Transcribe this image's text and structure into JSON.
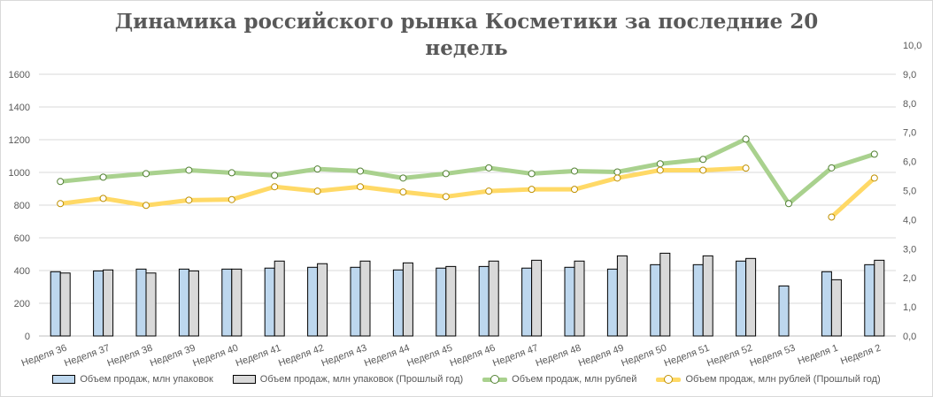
{
  "chart_data": {
    "type": "bar+line",
    "title": "Динамика российского рынка Косметики за последние 20 недель",
    "categories": [
      "Неделя 36",
      "Неделя 37",
      "Неделя 38",
      "Неделя 39",
      "Неделя 40",
      "Неделя 41",
      "Неделя 42",
      "Неделя 43",
      "Неделя 44",
      "Неделя 45",
      "Неделя 46",
      "Неделя 47",
      "Неделя 48",
      "Неделя 49",
      "Неделя 50",
      "Неделя 51",
      "Неделя 52",
      "Неделя 53",
      "Неделя 1",
      "Неделя 2"
    ],
    "y_left": {
      "min": 0,
      "max": 1600,
      "step": 200,
      "ticks": [
        "0",
        "200",
        "400",
        "600",
        "800",
        "1000",
        "1200",
        "1400",
        "1600"
      ]
    },
    "y_right": {
      "min": 0,
      "max": 10,
      "step": 1,
      "ticks": [
        "0,0",
        "1,0",
        "2,0",
        "3,0",
        "4,0",
        "5,0",
        "6,0",
        "7,0",
        "8,0",
        "9,0",
        "10,0"
      ]
    },
    "grid": true,
    "legend_position": "bottom",
    "series": [
      {
        "name": "Объем продаж, млн упаковок",
        "type": "bar",
        "axis": "left",
        "color": "#bdd7ee",
        "values": [
          393,
          398,
          409,
          409,
          409,
          415,
          420,
          420,
          404,
          415,
          425,
          415,
          420,
          409,
          436,
          436,
          458,
          306,
          393,
          436
        ]
      },
      {
        "name": "Объем продаж, млн упаковок (Прошлый год)",
        "type": "bar",
        "axis": "left",
        "color": "#d9d9d9",
        "values": [
          385,
          404,
          385,
          398,
          409,
          458,
          442,
          458,
          447,
          425,
          458,
          463,
          458,
          490,
          506,
          490,
          474,
          null,
          344,
          463
        ]
      },
      {
        "name": "Объем продаж, млн рублей",
        "type": "line",
        "axis": "right",
        "color": "#a9d18e",
        "marker": "#548235",
        "values": [
          5.31,
          5.46,
          5.58,
          5.7,
          5.61,
          5.52,
          5.74,
          5.67,
          5.43,
          5.58,
          5.78,
          5.58,
          5.67,
          5.64,
          5.92,
          6.07,
          6.77,
          4.55,
          5.78,
          6.25
        ]
      },
      {
        "name": "Объем продаж, млн рублей (Прошлый год)",
        "type": "line",
        "axis": "right",
        "color": "#ffd966",
        "marker": "#bf9000",
        "values": [
          4.55,
          4.73,
          4.49,
          4.67,
          4.69,
          5.13,
          4.98,
          5.13,
          4.95,
          4.79,
          4.98,
          5.04,
          5.04,
          5.43,
          5.7,
          5.7,
          5.77,
          null,
          4.09,
          5.43
        ]
      }
    ]
  }
}
